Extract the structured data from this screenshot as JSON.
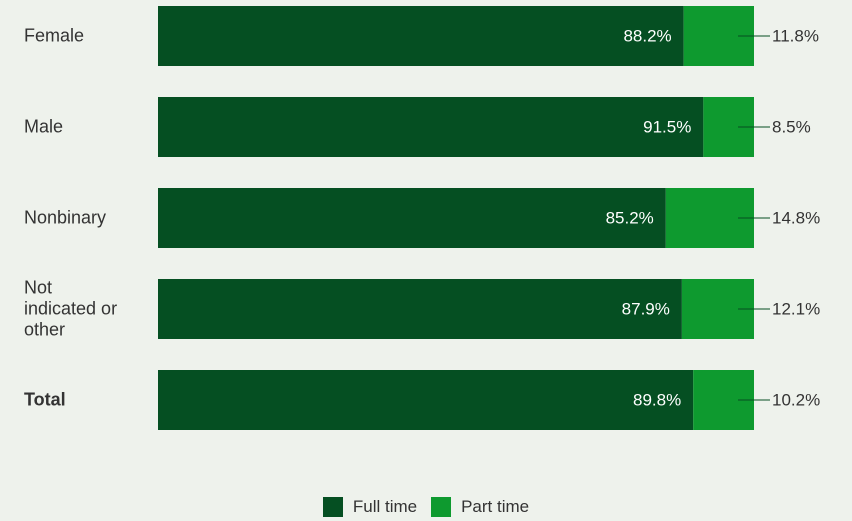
{
  "chart_data": {
    "type": "stacked-bar-horizontal",
    "categories": [
      "Female",
      "Male",
      "Nonbinary",
      "Not indicated or other",
      "Total"
    ],
    "series": [
      {
        "name": "Full time",
        "color": "#054f22",
        "values": [
          88.2,
          91.5,
          85.2,
          87.9,
          89.8
        ],
        "value_labels": [
          "88.2%",
          "91.5%",
          "85.2%",
          "87.9%",
          "89.8%"
        ]
      },
      {
        "name": "Part time",
        "color": "#0e9a2f",
        "values": [
          11.8,
          8.5,
          14.8,
          12.1,
          10.2
        ],
        "value_labels": [
          "11.8%",
          "8.5%",
          "14.8%",
          "12.1%",
          "10.2%"
        ]
      }
    ],
    "legend": "bottom"
  }
}
